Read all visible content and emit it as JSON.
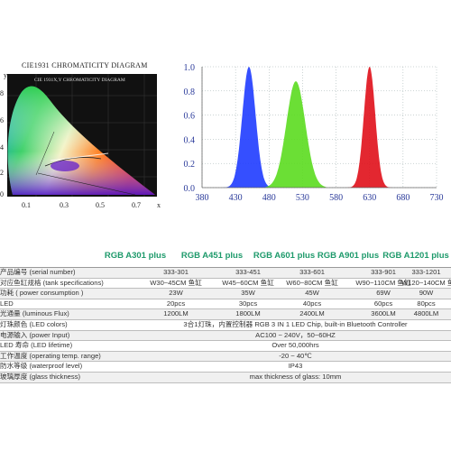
{
  "cie": {
    "title": "CIE1931 CHROMATICITY DIAGRAM",
    "inner_title": "CIE 1931X,Y CHROMATICITY DIAGRAM",
    "x_ticks": [
      "0.1",
      "0.3",
      "0.5",
      "0.7"
    ],
    "x_letter": "x",
    "y_ticks": [
      "8",
      "6",
      "4",
      "2",
      "0"
    ],
    "y_letter": "y"
  },
  "spectrum": {
    "chart_data": {
      "type": "area",
      "x_ticks": [
        380,
        430,
        480,
        530,
        580,
        630,
        680,
        730
      ],
      "y_ticks": [
        "0.0",
        "0.2",
        "0.4",
        "0.6",
        "0.8",
        "1.0"
      ],
      "xlim": [
        380,
        730
      ],
      "ylim": [
        0,
        1.0
      ],
      "peaks": [
        {
          "center": 450,
          "height": 1.0,
          "color": "#1f3cff"
        },
        {
          "center": 520,
          "height": 0.88,
          "color": "#5bdc1f"
        },
        {
          "center": 630,
          "height": 1.0,
          "color": "#e0101a"
        }
      ],
      "grid": true
    }
  },
  "table": {
    "models": [
      "RGB A301 plus",
      "RGB A451 plus",
      "RGB A601 plus",
      "RGB A901 plus",
      "RGB A1201 plus"
    ],
    "rows": [
      {
        "label": "产品编号 (serial number)",
        "values": [
          "333-301",
          "333-451",
          "333-601",
          "333-901",
          "333-1201"
        ]
      },
      {
        "label": "对应鱼缸规格 (tank specifications)",
        "values": [
          "W30~45CM 鱼缸",
          "W45~60CM 鱼缸",
          "W60~80CM 鱼缸",
          "W90~110CM 鱼缸",
          "W120~140CM 鱼缸"
        ]
      },
      {
        "label": "功耗 ( power consumption )",
        "values": [
          "23W",
          "35W",
          "45W",
          "69W",
          "90W"
        ]
      },
      {
        "label": "LED",
        "values": [
          "20pcs",
          "30pcs",
          "40pcs",
          "60pcs",
          "80pcs"
        ]
      },
      {
        "label": "光通量 (luminous Flux)",
        "values": [
          "1200LM",
          "1800LM",
          "2400LM",
          "3600LM",
          "4800LM"
        ]
      }
    ],
    "merged_rows": [
      {
        "label": "灯珠颜色 (LED colors)",
        "value": "3合1灯珠，内置控制器  RGB 3 IN 1 LED Chip, built-in Bluetooth Controller"
      },
      {
        "label": "电源输入 (power Input)",
        "value": "AC100 ~ 240V，50~60HZ"
      },
      {
        "label": "LED 寿命 (LED lifetime)",
        "value": "Over 50,000hrs"
      },
      {
        "label": "工作温度 (operating temp. range)",
        "value": "-20 ~ 40℃"
      },
      {
        "label": "防水等级 (waterproof level)",
        "value": "IP43"
      },
      {
        "label": "玻璃厚度 (glass thickness)",
        "value": "max thickness of glass: 10mm"
      }
    ]
  }
}
